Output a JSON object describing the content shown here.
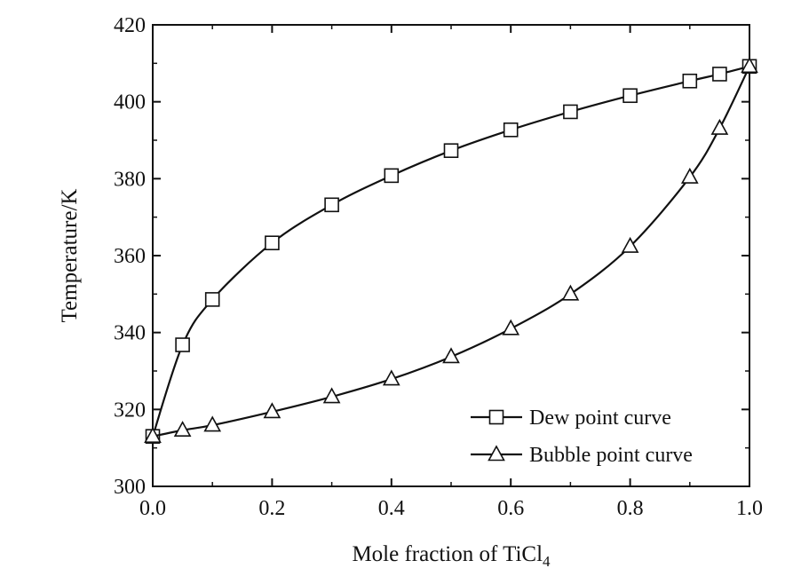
{
  "chart_data": {
    "type": "line",
    "title": "",
    "xlabel": "Mole fraction of TiCl",
    "xlabel_subscript": "4",
    "ylabel": "Temperature/K",
    "xlim": [
      0.0,
      1.0
    ],
    "ylim": [
      300,
      420
    ],
    "x_ticks": [
      "0.0",
      "0.2",
      "0.4",
      "0.6",
      "0.8",
      "1.0"
    ],
    "y_ticks": [
      "300",
      "320",
      "340",
      "360",
      "380",
      "400",
      "420"
    ],
    "grid": false,
    "legend_position": "bottom-right",
    "series": [
      {
        "name": "Dew point curve",
        "marker": "square",
        "x": [
          0.0,
          0.05,
          0.1,
          0.2,
          0.3,
          0.4,
          0.5,
          0.6,
          0.7,
          0.8,
          0.9,
          0.95,
          1.0
        ],
        "y": [
          313.0,
          336.8,
          348.6,
          363.3,
          373.2,
          380.8,
          387.3,
          392.7,
          397.4,
          401.6,
          405.4,
          407.2,
          409.2
        ]
      },
      {
        "name": "Bubble point curve",
        "marker": "triangle",
        "x": [
          0.0,
          0.05,
          0.1,
          0.2,
          0.3,
          0.4,
          0.5,
          0.6,
          0.7,
          0.8,
          0.9,
          0.95,
          1.0
        ],
        "y": [
          313.0,
          314.6,
          315.9,
          319.4,
          323.3,
          327.9,
          333.7,
          341.0,
          350.0,
          362.4,
          380.4,
          393.1,
          409.2
        ]
      }
    ]
  }
}
